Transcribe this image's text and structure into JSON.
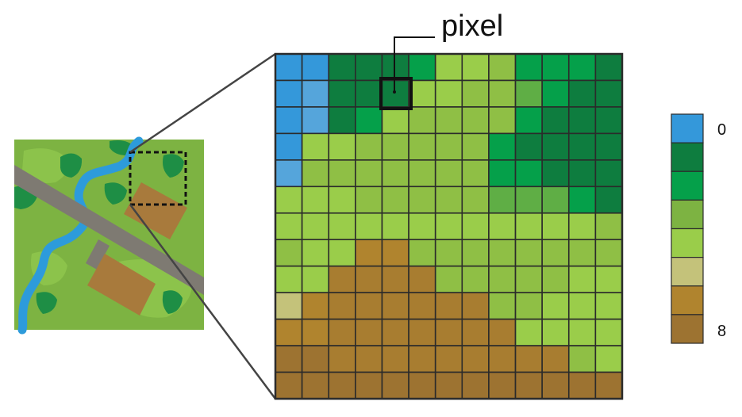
{
  "callout": {
    "label": "pixel"
  },
  "legend": {
    "min_label": "0",
    "max_label": "8",
    "swatches": [
      "#3498DA",
      "#0E7D3F",
      "#05A04A",
      "#7DB342",
      "#9ACD4A",
      "#C4C27A",
      "#B0842E",
      "#9D7331"
    ]
  },
  "palette": {
    "water": "#3498DA",
    "water_light": "#55A5DB",
    "forest_dark": "#0E7D3F",
    "forest": "#05A04A",
    "forest_mid": "#5FAE45",
    "grass": "#7DB342",
    "grass_mid": "#8FBF45",
    "grass_light": "#9ACD4A",
    "sand": "#C4C27A",
    "soil": "#B0842E",
    "soil_dark": "#9D7331",
    "soil_mid": "#A87D30",
    "road": "#7E7A72",
    "building": "#A87A3C",
    "grid_line": "#2B2B2B"
  },
  "raster": {
    "rows": [
      [
        "water",
        "water",
        "forest_dark",
        "forest_dark",
        "forest_dark",
        "forest",
        "grass_light",
        "grass_light",
        "grass_mid",
        "forest",
        "forest",
        "forest",
        "forest_dark"
      ],
      [
        "water",
        "water_light",
        "forest_dark",
        "forest_dark",
        "forest_dark",
        "grass_light",
        "grass_light",
        "grass_mid",
        "grass_mid",
        "forest_mid",
        "forest",
        "forest_dark",
        "forest_dark"
      ],
      [
        "water",
        "water_light",
        "forest_dark",
        "forest",
        "grass_light",
        "grass_mid",
        "grass_mid",
        "grass_mid",
        "grass_mid",
        "forest",
        "forest_dark",
        "forest_dark",
        "forest_dark"
      ],
      [
        "water",
        "grass_light",
        "grass_light",
        "grass_mid",
        "grass_mid",
        "grass_mid",
        "grass_mid",
        "grass_mid",
        "forest",
        "forest_dark",
        "forest_dark",
        "forest_dark",
        "forest_dark"
      ],
      [
        "water_light",
        "grass_mid",
        "grass_mid",
        "grass_mid",
        "grass_mid",
        "grass_mid",
        "grass_mid",
        "grass_mid",
        "forest",
        "forest",
        "forest_dark",
        "forest_dark",
        "forest_dark"
      ],
      [
        "grass_light",
        "grass_light",
        "grass_light",
        "grass_mid",
        "grass_mid",
        "grass_mid",
        "grass_mid",
        "grass_mid",
        "forest_mid",
        "forest_mid",
        "forest_mid",
        "forest",
        "forest_dark"
      ],
      [
        "grass_light",
        "grass_light",
        "grass_light",
        "grass_light",
        "grass_light",
        "grass_light",
        "grass_light",
        "grass_light",
        "grass_light",
        "grass_light",
        "grass_light",
        "grass_light",
        "grass_mid"
      ],
      [
        "grass_mid",
        "grass_light",
        "grass_light",
        "soil",
        "soil",
        "grass_mid",
        "grass_mid",
        "grass_mid",
        "grass_mid",
        "grass_mid",
        "grass_mid",
        "grass_mid",
        "grass_mid"
      ],
      [
        "grass_light",
        "grass_light",
        "soil_mid",
        "soil_mid",
        "soil_mid",
        "soil_mid",
        "grass_mid",
        "grass_mid",
        "grass_mid",
        "grass_mid",
        "grass_mid",
        "grass_light",
        "grass_light"
      ],
      [
        "sand",
        "soil",
        "soil_mid",
        "soil_mid",
        "soil_mid",
        "soil_mid",
        "soil_mid",
        "soil_mid",
        "grass_mid",
        "grass_mid",
        "grass_light",
        "grass_light",
        "grass_light"
      ],
      [
        "soil",
        "soil",
        "soil_mid",
        "soil_mid",
        "soil_mid",
        "soil_mid",
        "soil_mid",
        "soil_mid",
        "soil_mid",
        "grass_light",
        "grass_light",
        "grass_light",
        "grass_light"
      ],
      [
        "soil_dark",
        "soil_dark",
        "soil_mid",
        "soil_mid",
        "soil_mid",
        "soil_mid",
        "soil_mid",
        "soil_mid",
        "soil_mid",
        "soil_mid",
        "soil_mid",
        "grass_mid",
        "grass_light"
      ],
      [
        "soil_dark",
        "soil_dark",
        "soil_dark",
        "soil_dark",
        "soil_dark",
        "soil_dark",
        "soil_dark",
        "soil_dark",
        "soil_dark",
        "soil_dark",
        "soil_dark",
        "soil_dark",
        "soil_dark"
      ]
    ]
  }
}
